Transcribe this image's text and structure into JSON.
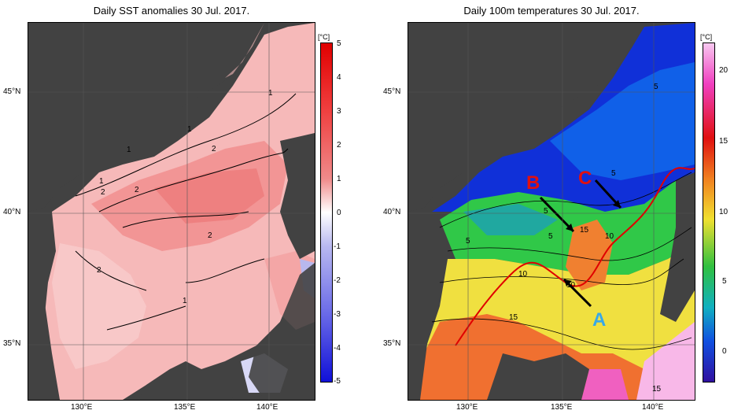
{
  "titles": {
    "left": "Daily SST anomalies 30 Jul. 2017.",
    "right": "Daily 100m temperatures 30 Jul. 2017."
  },
  "axes": {
    "lat_labels": [
      "45°N",
      "40°N",
      "35°N"
    ],
    "lon_labels": [
      "130°E",
      "135°E",
      "140°E"
    ]
  },
  "left_colorbar": {
    "unit": "[°C]",
    "ticks": [
      "5",
      "4",
      "3",
      "2",
      "1",
      "0",
      "-1",
      "-2",
      "-3",
      "-4",
      "-5"
    ]
  },
  "right_colorbar": {
    "unit": "[°C]",
    "ticks": [
      "20",
      "15",
      "10",
      "5",
      "0"
    ]
  },
  "left_contour_labels": [
    "1",
    "1",
    "1",
    "1",
    "2",
    "2",
    "2",
    "2",
    "1",
    "2"
  ],
  "right_contour_labels": [
    "5",
    "5",
    "5",
    "5",
    "15",
    "10",
    "10",
    "10",
    "15",
    "15",
    "5"
  ],
  "annotations": {
    "A": "A",
    "B": "B",
    "C": "C"
  },
  "colors": {
    "land": "#3d3d3d",
    "front_line": "#e00000",
    "label_A": "#38a8e8",
    "label_B": "#e01010",
    "label_C": "#e01010"
  }
}
